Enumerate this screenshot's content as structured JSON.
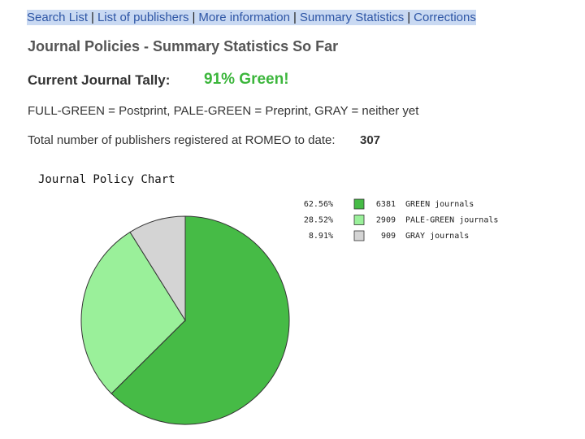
{
  "nav": {
    "links": [
      "Search List",
      "List of publishers",
      "More information",
      "Summary Statistics",
      "Corrections"
    ],
    "separator": "|"
  },
  "heading": "Journal Policies - Summary Statistics So Far",
  "tally": {
    "label": "Current Journal Tally:",
    "value": "91% Green!"
  },
  "key": "FULL-GREEN = Postprint, PALE-GREEN = Preprint, GRAY = neither yet",
  "publishers": {
    "label": "Total number of publishers registered at ROMEO to date:",
    "value": 307
  },
  "chart_data": {
    "type": "pie",
    "title": "Journal Policy Chart",
    "categories": [
      "GREEN journals",
      "PALE-GREEN journals",
      "GRAY journals"
    ],
    "values": [
      62.56,
      28.52,
      8.91
    ],
    "value_labels": [
      "62.56%",
      "28.52%",
      "8.91%"
    ],
    "counts": [
      6381,
      2909,
      909
    ],
    "colors": [
      "#46bb46",
      "#9af09a",
      "#d4d4d4"
    ]
  }
}
